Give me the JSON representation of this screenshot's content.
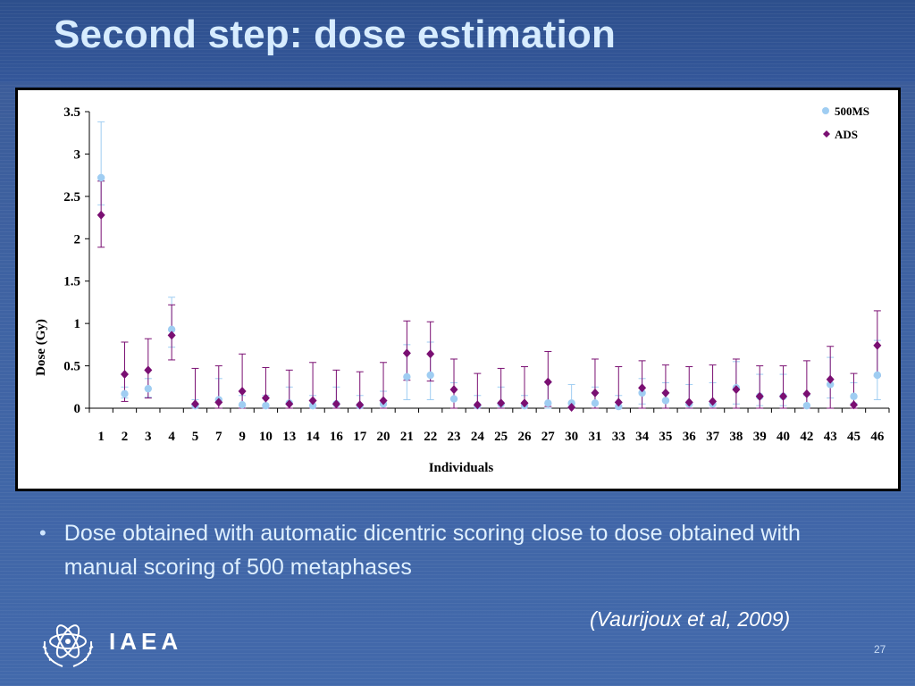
{
  "slide": {
    "title": "Second step: dose estimation",
    "bullet": "Dose obtained with automatic dicentric scoring  close to dose obtained with manual scoring of 500 metaphases",
    "citation": "(Vaurijoux et al, 2009)",
    "logo_text": "IAEA",
    "page_number": "27",
    "colors": {
      "background": "#3f63a3",
      "title": "#d7ecff",
      "series_500ms": "#9fcdf2",
      "series_ads": "#7a0f72"
    }
  },
  "chart_data": {
    "type": "scatter",
    "title": "",
    "xlabel": "Individuals",
    "ylabel": "Dose (Gy)",
    "ylim": [
      0,
      3.5
    ],
    "yticks": [
      "0",
      "0.5",
      "1",
      "1.5",
      "2",
      "2.5",
      "3",
      "3.5"
    ],
    "grid": false,
    "legend_position": "top-right",
    "categories": [
      "1",
      "2",
      "3",
      "4",
      "5",
      "7",
      "9",
      "10",
      "13",
      "14",
      "16",
      "17",
      "20",
      "21",
      "22",
      "23",
      "24",
      "25",
      "26",
      "27",
      "30",
      "31",
      "33",
      "34",
      "35",
      "36",
      "37",
      "38",
      "39",
      "40",
      "42",
      "43",
      "45",
      "46"
    ],
    "series": [
      {
        "name": "500MS",
        "marker": "circle",
        "color": "#9fcdf2",
        "values": [
          2.72,
          0.17,
          0.23,
          0.93,
          0.03,
          0.1,
          0.04,
          0.03,
          0.06,
          0.03,
          0.05,
          0.03,
          0.05,
          0.37,
          0.39,
          0.11,
          0.03,
          0.05,
          0.03,
          0.06,
          0.06,
          0.06,
          0.02,
          0.18,
          0.09,
          0.05,
          0.05,
          0.24,
          0.14,
          0.14,
          0.03,
          0.28,
          0.14,
          0.39
        ],
        "err_low": [
          2.4,
          0.12,
          0.13,
          0.72,
          0.0,
          0.0,
          0.0,
          0.0,
          0.0,
          0.0,
          0.0,
          0.0,
          0.0,
          0.1,
          0.1,
          0.0,
          0.0,
          0.0,
          0.0,
          0.0,
          0.0,
          0.0,
          0.0,
          0.05,
          0.0,
          0.0,
          0.0,
          0.05,
          0.03,
          0.03,
          0.0,
          0.12,
          0.06,
          0.1
        ],
        "err_high": [
          3.38,
          0.25,
          0.35,
          1.31,
          0.1,
          0.35,
          0.15,
          0.15,
          0.25,
          0.15,
          0.25,
          0.15,
          0.2,
          0.75,
          0.78,
          0.3,
          0.15,
          0.25,
          0.15,
          0.3,
          0.28,
          0.25,
          0.15,
          0.35,
          0.3,
          0.28,
          0.3,
          0.55,
          0.4,
          0.4,
          0.15,
          0.6,
          0.3,
          0.8
        ]
      },
      {
        "name": "ADS",
        "marker": "diamond",
        "color": "#7a0f72",
        "values": [
          2.28,
          0.4,
          0.45,
          0.86,
          0.05,
          0.07,
          0.2,
          0.12,
          0.05,
          0.09,
          0.05,
          0.04,
          0.09,
          0.65,
          0.64,
          0.22,
          0.04,
          0.06,
          0.06,
          0.31,
          0.01,
          0.18,
          0.07,
          0.24,
          0.18,
          0.07,
          0.08,
          0.22,
          0.14,
          0.14,
          0.17,
          0.34,
          0.04,
          0.74
        ],
        "err_low": [
          1.9,
          0.08,
          0.12,
          0.57,
          0.0,
          0.0,
          0.0,
          0.0,
          0.0,
          0.0,
          0.0,
          0.0,
          0.0,
          0.33,
          0.32,
          0.0,
          0.0,
          0.0,
          0.0,
          0.02,
          0.0,
          0.0,
          0.0,
          0.0,
          0.0,
          0.0,
          0.0,
          0.0,
          0.0,
          0.0,
          0.0,
          0.0,
          0.0,
          0.38
        ],
        "err_high": [
          2.68,
          0.78,
          0.82,
          1.22,
          0.47,
          0.5,
          0.64,
          0.48,
          0.45,
          0.54,
          0.45,
          0.43,
          0.54,
          1.03,
          1.02,
          0.58,
          0.41,
          0.47,
          0.49,
          0.67,
          0.0,
          0.58,
          0.49,
          0.56,
          0.51,
          0.49,
          0.51,
          0.58,
          0.5,
          0.5,
          0.56,
          0.73,
          0.41,
          1.15
        ]
      }
    ]
  }
}
